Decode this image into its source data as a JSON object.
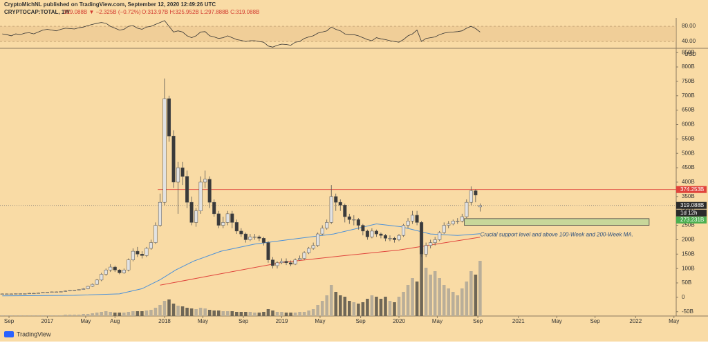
{
  "header": {
    "author_line": "CryptoMichNL published on TradingView.com, September 12, 2020 12:49:26 UTC",
    "symbol": "CRYPTOCAP:TOTAL, 1W",
    "change": "319.088B ▼ −2.325B (−0.72%)",
    "ohlc": "O:313.97B H:325.952B L:297.888B C:319.088B"
  },
  "footer": {
    "brand": "TradingView"
  },
  "chart_data": {
    "type": "candlestick",
    "x": [
      -72,
      -70,
      -68,
      -66,
      -64,
      -62,
      -60,
      -58,
      -56,
      -54,
      -52,
      -50,
      -48,
      -46,
      -44,
      -42,
      -40,
      -38,
      -36,
      -34,
      -32,
      -30,
      -28,
      -26,
      -24,
      -22,
      -20,
      -18,
      -16,
      -14,
      -12,
      -10,
      -8,
      -6,
      -4,
      -2,
      0,
      2,
      4,
      6,
      8,
      10,
      12,
      14,
      16,
      18,
      20,
      22,
      24,
      26,
      28,
      30,
      32,
      34,
      36,
      38,
      40,
      42,
      44,
      46,
      48,
      50,
      52,
      54,
      56,
      58,
      60,
      62,
      64,
      66,
      68,
      70,
      72,
      74,
      76,
      78,
      80,
      82,
      84,
      86,
      88,
      90,
      92,
      94,
      96,
      98,
      100,
      102,
      104,
      106,
      108,
      110,
      112,
      114,
      116,
      118,
      120,
      122,
      124,
      126,
      128,
      130,
      132,
      134,
      136,
      138,
      140
    ],
    "xlim": [
      -73,
      227
    ],
    "xticks": [
      {
        "value": -69,
        "label": "Sep"
      },
      {
        "value": -52,
        "label": "2017"
      },
      {
        "value": -35,
        "label": "May"
      },
      {
        "value": -22,
        "label": "Aug"
      },
      {
        "value": 0,
        "label": "2018"
      },
      {
        "value": 17,
        "label": "May"
      },
      {
        "value": 35,
        "label": "Sep"
      },
      {
        "value": 52,
        "label": "2019"
      },
      {
        "value": 69,
        "label": "May"
      },
      {
        "value": 87,
        "label": "Sep"
      },
      {
        "value": 104,
        "label": "2020"
      },
      {
        "value": 121,
        "label": "May"
      },
      {
        "value": 139,
        "label": "Sep"
      },
      {
        "value": 157,
        "label": "2021"
      },
      {
        "value": 174,
        "label": "May"
      },
      {
        "value": 191,
        "label": "Sep"
      },
      {
        "value": 209,
        "label": "2022"
      },
      {
        "value": 226,
        "label": "May"
      }
    ],
    "open": [
      12,
      12,
      12,
      12,
      13,
      13,
      13,
      14,
      14,
      15,
      17,
      18,
      19,
      19,
      20,
      22,
      24,
      25,
      27,
      30,
      38,
      45,
      60,
      80,
      95,
      105,
      95,
      85,
      95,
      130,
      160,
      150,
      145,
      170,
      190,
      250,
      330,
      690,
      560,
      400,
      450,
      420,
      330,
      260,
      300,
      400,
      410,
      330,
      290,
      250,
      260,
      290,
      260,
      230,
      220,
      200,
      210,
      210,
      205,
      190,
      130,
      110,
      120,
      125,
      120,
      115,
      130,
      135,
      155,
      170,
      180,
      220,
      240,
      260,
      350,
      330,
      320,
      280,
      270,
      270,
      250,
      230,
      210,
      230,
      220,
      215,
      205,
      205,
      200,
      215,
      250,
      265,
      285,
      260,
      150,
      180,
      190,
      200,
      225,
      250,
      255,
      265,
      265,
      280,
      330,
      370,
      313.97
    ],
    "high": [
      13,
      13,
      13,
      14,
      14,
      14,
      15,
      15,
      16,
      18,
      19,
      20,
      20,
      21,
      23,
      25,
      26,
      28,
      32,
      40,
      48,
      64,
      85,
      100,
      115,
      110,
      98,
      100,
      135,
      170,
      175,
      160,
      175,
      200,
      260,
      360,
      760,
      700,
      580,
      470,
      470,
      440,
      350,
      310,
      420,
      440,
      420,
      340,
      300,
      280,
      300,
      300,
      270,
      240,
      225,
      220,
      220,
      215,
      210,
      195,
      140,
      125,
      135,
      135,
      128,
      135,
      145,
      160,
      175,
      190,
      225,
      250,
      270,
      390,
      360,
      340,
      325,
      290,
      285,
      275,
      255,
      235,
      240,
      235,
      225,
      220,
      215,
      210,
      220,
      255,
      275,
      300,
      300,
      265,
      190,
      200,
      210,
      230,
      260,
      265,
      270,
      275,
      290,
      340,
      385,
      375,
      325.952
    ],
    "low": [
      11,
      11,
      11,
      12,
      12,
      12,
      13,
      13,
      14,
      15,
      16,
      17,
      18,
      18,
      19,
      21,
      23,
      24,
      26,
      28,
      36,
      43,
      56,
      75,
      88,
      88,
      80,
      82,
      90,
      125,
      140,
      135,
      140,
      165,
      185,
      245,
      320,
      540,
      380,
      290,
      390,
      310,
      250,
      245,
      290,
      380,
      310,
      280,
      240,
      240,
      250,
      240,
      220,
      210,
      190,
      195,
      200,
      195,
      180,
      120,
      100,
      100,
      115,
      112,
      108,
      112,
      128,
      130,
      150,
      165,
      175,
      215,
      235,
      255,
      300,
      300,
      260,
      255,
      250,
      235,
      215,
      200,
      205,
      210,
      205,
      195,
      195,
      190,
      195,
      210,
      240,
      255,
      250,
      140,
      140,
      170,
      180,
      195,
      220,
      240,
      250,
      255,
      260,
      275,
      320,
      330,
      297.888
    ],
    "close": [
      12,
      12,
      12,
      13,
      13,
      13,
      14,
      14,
      15,
      17,
      18,
      19,
      19,
      20,
      22,
      24,
      25,
      27,
      30,
      38,
      45,
      60,
      80,
      95,
      105,
      95,
      85,
      95,
      130,
      160,
      150,
      145,
      170,
      190,
      250,
      330,
      690,
      560,
      400,
      450,
      420,
      330,
      260,
      300,
      400,
      410,
      330,
      290,
      250,
      260,
      290,
      260,
      230,
      220,
      200,
      210,
      210,
      205,
      190,
      130,
      110,
      120,
      125,
      120,
      115,
      130,
      135,
      155,
      170,
      180,
      220,
      240,
      260,
      350,
      330,
      320,
      280,
      270,
      270,
      250,
      230,
      210,
      230,
      220,
      215,
      205,
      205,
      200,
      215,
      250,
      265,
      285,
      260,
      150,
      180,
      190,
      200,
      225,
      250,
      255,
      265,
      265,
      280,
      330,
      370,
      355,
      319.088
    ],
    "volume": [
      1,
      1,
      1,
      1,
      1,
      1,
      1,
      1,
      1,
      1,
      1,
      1,
      1,
      1,
      2,
      2,
      2,
      2,
      3,
      3,
      4,
      5,
      6,
      7,
      6,
      5,
      5,
      5,
      6,
      7,
      7,
      7,
      8,
      9,
      12,
      16,
      22,
      24,
      18,
      15,
      14,
      12,
      11,
      10,
      12,
      11,
      9,
      8,
      8,
      7,
      7,
      7,
      6,
      6,
      6,
      6,
      5,
      5,
      6,
      10,
      8,
      6,
      6,
      5,
      5,
      5,
      6,
      6,
      8,
      10,
      16,
      22,
      30,
      45,
      35,
      30,
      28,
      22,
      20,
      18,
      20,
      25,
      30,
      28,
      25,
      28,
      22,
      20,
      28,
      35,
      45,
      55,
      50,
      100,
      70,
      60,
      65,
      55,
      45,
      40,
      35,
      30,
      40,
      50,
      65,
      60,
      80
    ],
    "volume_ylim": [
      0,
      100
    ],
    "ylim": [
      -65,
      860
    ],
    "yticks": [
      {
        "value": -50,
        "label": "-50B"
      },
      0,
      {
        "value": 50,
        "label": "50B"
      },
      {
        "value": 100,
        "label": "100B"
      },
      {
        "value": 150,
        "label": "150B"
      },
      {
        "value": 200,
        "label": "200B"
      },
      {
        "value": 250,
        "label": "250B"
      },
      {
        "value": 300,
        "label": "300B"
      },
      {
        "value": 350,
        "label": "350B"
      },
      {
        "value": 400,
        "label": "400B"
      },
      {
        "value": 450,
        "label": "450B"
      },
      {
        "value": 500,
        "label": "500B"
      },
      {
        "value": 550,
        "label": "550B"
      },
      {
        "value": 600,
        "label": "600B"
      },
      {
        "value": 650,
        "label": "650B"
      },
      {
        "value": 700,
        "label": "700B"
      },
      {
        "value": 750,
        "label": "750B"
      },
      {
        "value": 800,
        "label": "800B"
      },
      {
        "value": 850,
        "label": "850B"
      }
    ],
    "currency": "USD",
    "colors": {
      "up": "#e2e2e2",
      "down": "#3a3a3a",
      "wick": "#505050",
      "volume_up": "#b9ae99",
      "volume_down": "#6f6757",
      "background": "#f9dba5"
    },
    "moving_averages": [
      {
        "color": "#4a90d9",
        "x": [
          -72,
          -40,
          -20,
          -10,
          -2,
          5,
          13,
          25,
          40,
          55,
          75,
          94,
          105,
          118,
          130,
          140
        ],
        "values": [
          5,
          7,
          12,
          30,
          61,
          95,
          126,
          160,
          185,
          200,
          220,
          255,
          245,
          220,
          215,
          221
        ]
      },
      {
        "color": "#e0443c",
        "x": [
          -2,
          19,
          52,
          80,
          104,
          140
        ],
        "values": [
          42,
          73,
          121,
          145,
          164,
          209
        ]
      }
    ],
    "rsi": {
      "values": [
        60,
        58,
        55,
        60,
        58,
        62,
        63,
        60,
        65,
        70,
        72,
        70,
        68,
        72,
        75,
        74,
        73,
        76,
        78,
        82,
        85,
        88,
        90,
        88,
        80,
        75,
        70,
        72,
        80,
        82,
        75,
        72,
        78,
        80,
        85,
        90,
        95,
        80,
        65,
        68,
        65,
        55,
        50,
        55,
        65,
        66,
        55,
        52,
        48,
        50,
        55,
        50,
        45,
        43,
        40,
        42,
        42,
        40,
        38,
        28,
        25,
        30,
        33,
        32,
        30,
        38,
        40,
        48,
        52,
        55,
        62,
        65,
        68,
        78,
        72,
        68,
        60,
        58,
        58,
        55,
        50,
        45,
        42,
        50,
        47,
        45,
        42,
        40,
        38,
        45,
        55,
        60,
        70,
        40,
        48,
        50,
        52,
        58,
        62,
        64,
        65,
        66,
        68,
        75,
        80,
        74,
        65
      ],
      "ylim": [
        22,
        102
      ],
      "yticks": [
        {
          "value": 80,
          "label": "80.00"
        },
        {
          "value": 40,
          "label": "40.00"
        }
      ],
      "band": [
        40,
        80
      ],
      "color": "#333333"
    },
    "resistance": {
      "value": 374.253,
      "label": "374.253B",
      "x_start": -3,
      "color": "#e0443c"
    },
    "last_price": {
      "value": 319.088,
      "label": "319.088B",
      "countdown": "1d 12h"
    },
    "support_zone": {
      "ylim": [
        250,
        273.231
      ],
      "xlim": [
        133,
        215
      ],
      "label": "273.231B",
      "color": "#4caf50",
      "annotation": "Crucial support level and above 100-Week and 200-Week MA."
    }
  }
}
